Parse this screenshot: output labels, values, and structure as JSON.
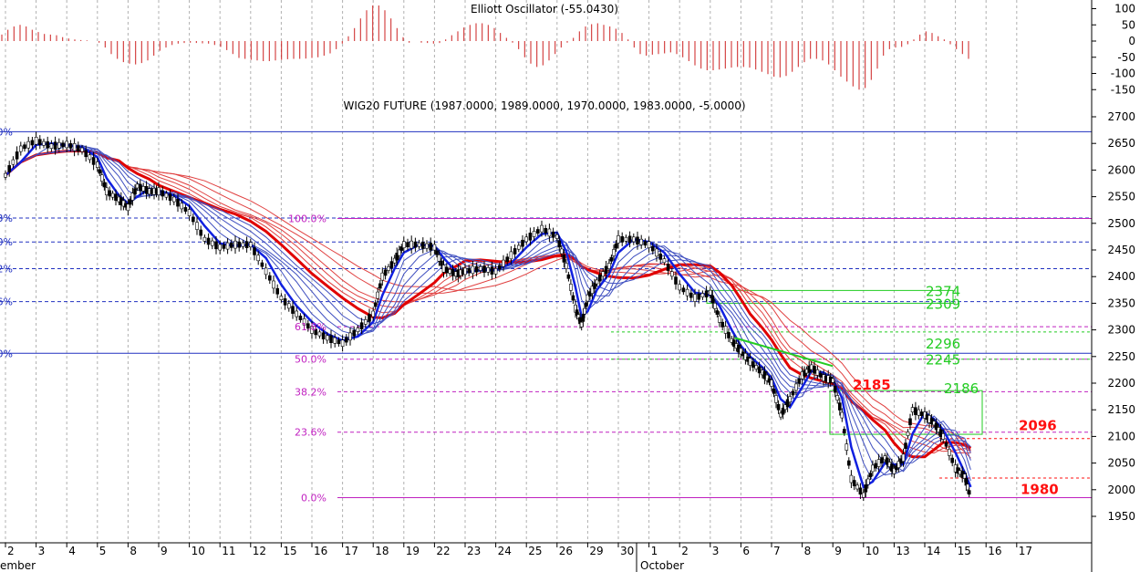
{
  "chart_data": [
    {
      "type": "bar",
      "title": "Elliott Oscillator (-55.0430)",
      "y_ticks": [
        "100",
        "50",
        "0",
        "-50",
        "-100",
        "-150"
      ],
      "ylim": [
        -150,
        110
      ],
      "values": [
        20,
        35,
        45,
        50,
        45,
        35,
        28,
        22,
        20,
        18,
        12,
        8,
        5,
        3,
        2,
        0,
        -5,
        -20,
        -40,
        -55,
        -65,
        -70,
        -72,
        -68,
        -60,
        -45,
        -30,
        -20,
        -12,
        -8,
        -6,
        -5,
        -6,
        -7,
        -8,
        -12,
        -18,
        -28,
        -40,
        -52,
        -55,
        -58,
        -60,
        -62,
        -62,
        -60,
        -58,
        -56,
        -55,
        -55,
        -54,
        -52,
        -50,
        -45,
        -38,
        -25,
        -8,
        15,
        40,
        70,
        95,
        110,
        110,
        95,
        70,
        40,
        12,
        -5,
        0,
        -5,
        -6,
        -8,
        -6,
        5,
        18,
        30,
        42,
        50,
        55,
        55,
        50,
        40,
        25,
        10,
        -5,
        -25,
        -50,
        -70,
        -80,
        -75,
        -60,
        -40,
        -20,
        -5,
        10,
        30,
        45,
        52,
        55,
        50,
        45,
        38,
        25,
        5,
        -20,
        -40,
        -45,
        -42,
        -40,
        -38,
        -35,
        -40,
        -50,
        -62,
        -75,
        -85,
        -90,
        -90,
        -88,
        -85,
        -82,
        -80,
        -80,
        -82,
        -88,
        -95,
        -102,
        -110,
        -112,
        -108,
        -95,
        -80,
        -65,
        -55,
        -55,
        -60,
        -72,
        -90,
        -110,
        -125,
        -140,
        -150,
        -145,
        -120,
        -85,
        -45,
        -25,
        -20,
        -18,
        -10,
        5,
        20,
        30,
        25,
        15,
        5,
        -10,
        -25,
        -40,
        -55
      ]
    },
    {
      "type": "line",
      "title": "WIG20 FUTURE (1987.0000, 1989.0000, 1970.0000, 1983.0000, -5.0000)",
      "y_ticks": [
        "2700",
        "2650",
        "2600",
        "2550",
        "2500",
        "2450",
        "2400",
        "2350",
        "2300",
        "2250",
        "2200",
        "2150",
        "2100",
        "2050",
        "2000",
        "1950"
      ],
      "ylim": [
        1925,
        2735
      ],
      "x_categories": [
        "2",
        "3",
        "4",
        "5",
        "8",
        "9",
        "10",
        "11",
        "12",
        "15",
        "16",
        "17",
        "18",
        "19",
        "22",
        "23",
        "24",
        "25",
        "26",
        "29",
        "30",
        "1",
        "2",
        "3",
        "6",
        "7",
        "8",
        "9",
        "10",
        "13",
        "14",
        "15",
        "16",
        "17"
      ],
      "month_labels": [
        "ember",
        "October"
      ],
      "fib_levels": [
        {
          "label": "100.0%",
          "value": 2509
        },
        {
          "label": "61.8%",
          "value": 2306
        },
        {
          "label": "50.0%",
          "value": 2245
        },
        {
          "label": "38.2%",
          "value": 2184
        },
        {
          "label": "23.6%",
          "value": 2108
        },
        {
          "label": "0.0%",
          "value": 1985
        }
      ],
      "left_edge_labels": [
        {
          "label": "0%",
          "value": 2672
        },
        {
          "label": "3%",
          "value": 2510
        },
        {
          "label": "0%",
          "value": 2465
        },
        {
          "label": "2%",
          "value": 2415
        },
        {
          "label": "6%",
          "value": 2353
        },
        {
          "label": "0%",
          "value": 2256
        }
      ],
      "green_levels": [
        "2374",
        "2309",
        "2296",
        "2245",
        "2186"
      ],
      "red_levels": [
        "2185",
        "2096",
        "1980"
      ],
      "price": [
        {
          "x": 0.0,
          "y": 2590
        },
        {
          "x": 0.5,
          "y": 2640
        },
        {
          "x": 1.0,
          "y": 2655
        },
        {
          "x": 1.5,
          "y": 2645
        },
        {
          "x": 2.0,
          "y": 2648
        },
        {
          "x": 2.5,
          "y": 2638
        },
        {
          "x": 3.0,
          "y": 2610
        },
        {
          "x": 3.3,
          "y": 2560
        },
        {
          "x": 3.7,
          "y": 2545
        },
        {
          "x": 4.0,
          "y": 2530
        },
        {
          "x": 4.3,
          "y": 2570
        },
        {
          "x": 4.7,
          "y": 2560
        },
        {
          "x": 5.0,
          "y": 2560
        },
        {
          "x": 5.5,
          "y": 2545
        },
        {
          "x": 6.0,
          "y": 2520
        },
        {
          "x": 6.5,
          "y": 2470
        },
        {
          "x": 7.0,
          "y": 2455
        },
        {
          "x": 7.5,
          "y": 2460
        },
        {
          "x": 8.0,
          "y": 2460
        },
        {
          "x": 8.5,
          "y": 2410
        },
        {
          "x": 9.0,
          "y": 2360
        },
        {
          "x": 9.5,
          "y": 2330
        },
        {
          "x": 10.0,
          "y": 2300
        },
        {
          "x": 10.5,
          "y": 2285
        },
        {
          "x": 11.0,
          "y": 2275
        },
        {
          "x": 11.5,
          "y": 2300
        },
        {
          "x": 12.0,
          "y": 2330
        },
        {
          "x": 12.3,
          "y": 2400
        },
        {
          "x": 12.7,
          "y": 2430
        },
        {
          "x": 13.0,
          "y": 2460
        },
        {
          "x": 13.5,
          "y": 2460
        },
        {
          "x": 14.0,
          "y": 2455
        },
        {
          "x": 14.3,
          "y": 2415
        },
        {
          "x": 14.7,
          "y": 2405
        },
        {
          "x": 15.0,
          "y": 2410
        },
        {
          "x": 15.5,
          "y": 2415
        },
        {
          "x": 16.0,
          "y": 2410
        },
        {
          "x": 16.5,
          "y": 2440
        },
        {
          "x": 17.0,
          "y": 2470
        },
        {
          "x": 17.5,
          "y": 2490
        },
        {
          "x": 18.0,
          "y": 2475
        },
        {
          "x": 18.3,
          "y": 2420
        },
        {
          "x": 18.6,
          "y": 2340
        },
        {
          "x": 18.8,
          "y": 2310
        },
        {
          "x": 19.0,
          "y": 2360
        },
        {
          "x": 19.3,
          "y": 2390
        },
        {
          "x": 19.7,
          "y": 2420
        },
        {
          "x": 20.0,
          "y": 2470
        },
        {
          "x": 20.5,
          "y": 2470
        },
        {
          "x": 21.0,
          "y": 2460
        },
        {
          "x": 21.5,
          "y": 2430
        },
        {
          "x": 22.0,
          "y": 2380
        },
        {
          "x": 22.5,
          "y": 2360
        },
        {
          "x": 23.0,
          "y": 2370
        },
        {
          "x": 23.3,
          "y": 2320
        },
        {
          "x": 23.7,
          "y": 2280
        },
        {
          "x": 24.0,
          "y": 2260
        },
        {
          "x": 24.3,
          "y": 2240
        },
        {
          "x": 24.7,
          "y": 2220
        },
        {
          "x": 25.0,
          "y": 2200
        },
        {
          "x": 25.3,
          "y": 2140
        },
        {
          "x": 25.6,
          "y": 2170
        },
        {
          "x": 26.0,
          "y": 2215
        },
        {
          "x": 26.3,
          "y": 2230
        },
        {
          "x": 26.7,
          "y": 2210
        },
        {
          "x": 27.0,
          "y": 2205
        },
        {
          "x": 27.3,
          "y": 2140
        },
        {
          "x": 27.6,
          "y": 2020
        },
        {
          "x": 28.0,
          "y": 1990
        },
        {
          "x": 28.3,
          "y": 2040
        },
        {
          "x": 28.7,
          "y": 2060
        },
        {
          "x": 29.0,
          "y": 2035
        },
        {
          "x": 29.3,
          "y": 2060
        },
        {
          "x": 29.6,
          "y": 2150
        },
        {
          "x": 30.0,
          "y": 2140
        },
        {
          "x": 30.3,
          "y": 2125
        },
        {
          "x": 30.6,
          "y": 2100
        },
        {
          "x": 31.0,
          "y": 2040
        },
        {
          "x": 31.3,
          "y": 2025
        },
        {
          "x": 31.5,
          "y": 1985
        }
      ]
    }
  ]
}
